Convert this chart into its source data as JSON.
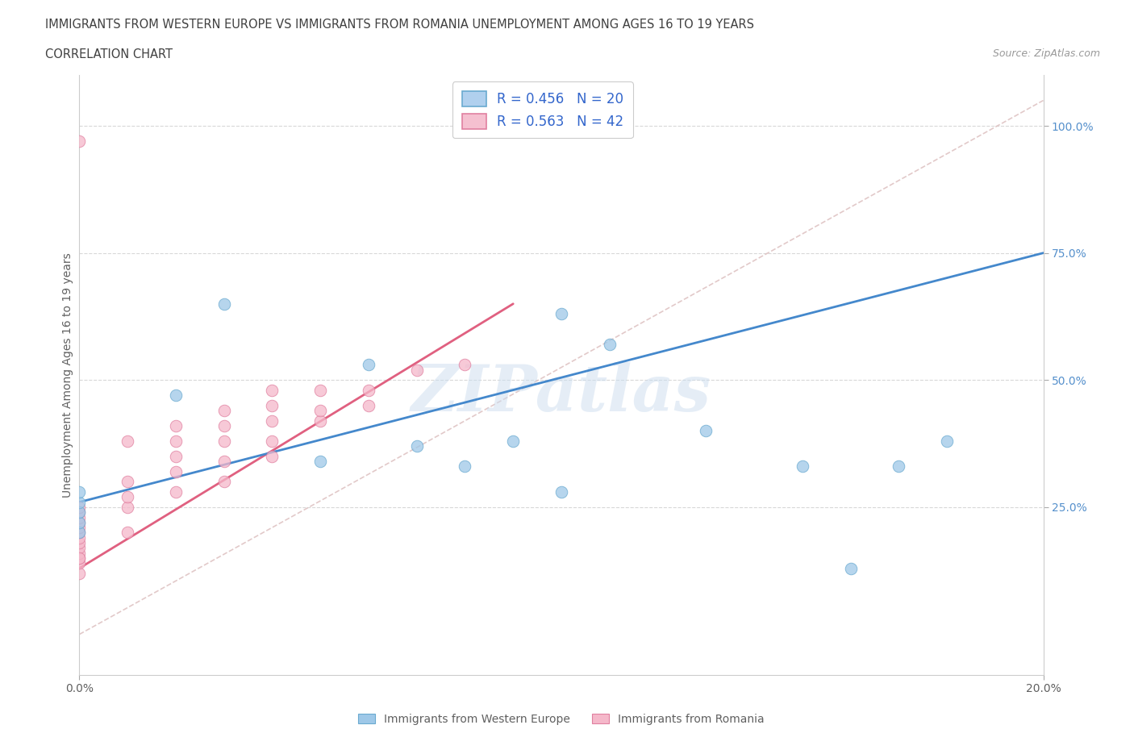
{
  "title_line1": "IMMIGRANTS FROM WESTERN EUROPE VS IMMIGRANTS FROM ROMANIA UNEMPLOYMENT AMONG AGES 16 TO 19 YEARS",
  "title_line2": "CORRELATION CHART",
  "source": "Source: ZipAtlas.com",
  "ylabel": "Unemployment Among Ages 16 to 19 years",
  "xlim": [
    0.0,
    0.2
  ],
  "ylim": [
    -0.08,
    1.1
  ],
  "ytick_positions": [
    0.25,
    0.5,
    0.75,
    1.0
  ],
  "ytick_labels": [
    "25.0%",
    "50.0%",
    "75.0%",
    "100.0%"
  ],
  "xtick_positions": [
    0.0,
    0.2
  ],
  "xtick_labels": [
    "0.0%",
    "20.0%"
  ],
  "legend_blue_label": "R = 0.456   N = 20",
  "legend_pink_label": "R = 0.563   N = 42",
  "watermark": "ZIPatlas",
  "series_blue": {
    "name": "Immigrants from Western Europe",
    "color": "#9ec8e8",
    "edge_color": "#6aaad0",
    "x": [
      0.0,
      0.0,
      0.0,
      0.0,
      0.0,
      0.02,
      0.03,
      0.05,
      0.06,
      0.07,
      0.08,
      0.09,
      0.1,
      0.1,
      0.11,
      0.13,
      0.15,
      0.16,
      0.17,
      0.18
    ],
    "y": [
      0.2,
      0.22,
      0.24,
      0.26,
      0.28,
      0.47,
      0.65,
      0.34,
      0.53,
      0.37,
      0.33,
      0.38,
      0.28,
      0.63,
      0.57,
      0.4,
      0.33,
      0.13,
      0.33,
      0.38
    ],
    "trend_x": [
      0.0,
      0.2
    ],
    "trend_y": [
      0.26,
      0.75
    ]
  },
  "series_pink": {
    "name": "Immigrants from Romania",
    "color": "#f5b8ca",
    "edge_color": "#e080a0",
    "x": [
      0.0,
      0.0,
      0.0,
      0.0,
      0.0,
      0.0,
      0.0,
      0.0,
      0.0,
      0.0,
      0.0,
      0.0,
      0.0,
      0.0,
      0.0,
      0.01,
      0.01,
      0.01,
      0.01,
      0.01,
      0.02,
      0.02,
      0.02,
      0.02,
      0.02,
      0.03,
      0.03,
      0.03,
      0.03,
      0.03,
      0.04,
      0.04,
      0.04,
      0.04,
      0.04,
      0.05,
      0.05,
      0.05,
      0.06,
      0.06,
      0.07,
      0.08
    ],
    "y": [
      0.12,
      0.14,
      0.15,
      0.16,
      0.17,
      0.18,
      0.19,
      0.2,
      0.21,
      0.22,
      0.23,
      0.24,
      0.25,
      0.97,
      0.15,
      0.2,
      0.25,
      0.27,
      0.3,
      0.38,
      0.28,
      0.32,
      0.35,
      0.38,
      0.41,
      0.3,
      0.34,
      0.38,
      0.41,
      0.44,
      0.35,
      0.38,
      0.42,
      0.45,
      0.48,
      0.42,
      0.44,
      0.48,
      0.45,
      0.48,
      0.52,
      0.53
    ],
    "trend_x": [
      0.0,
      0.09
    ],
    "trend_y": [
      0.13,
      0.65
    ]
  },
  "diagonal_line": {
    "x": [
      0.0,
      0.2
    ],
    "y": [
      0.0,
      1.05
    ]
  },
  "background_color": "#ffffff",
  "grid_color": "#d8d8d8",
  "title_color": "#404040",
  "text_color": "#606060",
  "blue_line_color": "#4488cc",
  "pink_line_color": "#e06080",
  "diag_color": "#ddc0c0",
  "ytick_color": "#5590cc",
  "legend_text_color": "#3366cc"
}
